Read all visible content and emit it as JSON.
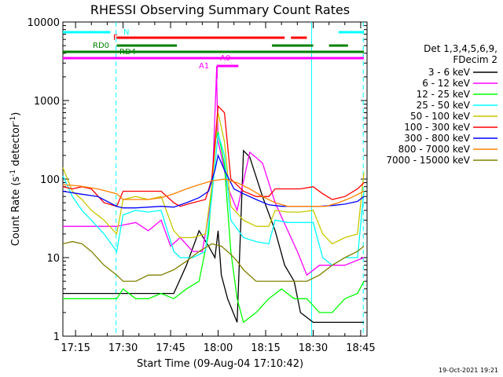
{
  "chart_data": {
    "type": "line",
    "title": "RHESSI Observing Summary Count Rates",
    "xlabel": "Start Time (09-Aug-04 17:10:42)",
    "ylabel": "Count Rate (s",
    "ylabel_sup": "-1",
    "ylabel_mid": " detector",
    "ylabel_sup2": "-1",
    "ylabel_end": ")",
    "y_scale": "log",
    "ylim": [
      1,
      10000
    ],
    "xlim_minutes": [
      17.2,
      18.82
    ],
    "x_ticks": [
      {
        "label": "17:15",
        "minute": 1035
      },
      {
        "label": "17:30",
        "minute": 1050
      },
      {
        "label": "17:45",
        "minute": 1065
      },
      {
        "label": "18:00",
        "minute": 1080
      },
      {
        "label": "18:15",
        "minute": 1095
      },
      {
        "label": "18:30",
        "minute": 1110
      },
      {
        "label": "18:45",
        "minute": 1125
      }
    ],
    "y_ticks": [
      {
        "label": "1",
        "value": 1
      },
      {
        "label": "10",
        "value": 10
      },
      {
        "label": "100",
        "value": 100
      },
      {
        "label": "1000",
        "value": 1000
      },
      {
        "label": "10000",
        "value": 10000
      }
    ],
    "legend_header": [
      "Det 1,3,4,5,6,9,",
      "FDecim 2"
    ],
    "legend_placement": "right",
    "footer_date": "19-Oct-2021 19:21",
    "series": [
      {
        "name": "3 - 6 keV",
        "color": "#000000",
        "x": [
          1031,
          1040,
          1046,
          1050,
          1056,
          1062,
          1066,
          1070,
          1074,
          1077,
          1079,
          1080,
          1081,
          1083,
          1086,
          1088,
          1090,
          1094,
          1098,
          1101,
          1104,
          1106,
          1110,
          1116,
          1121,
          1126
        ],
        "y": [
          3.5,
          3.5,
          3.5,
          3.5,
          3.5,
          3.5,
          3.5,
          8,
          22,
          14,
          10,
          22,
          6,
          3,
          1.5,
          230,
          190,
          60,
          22,
          8,
          5,
          2,
          1.5,
          1.5,
          1.5,
          1.5
        ]
      },
      {
        "name": "6 - 12 keV",
        "color": "#ff00ff",
        "x": [
          1031,
          1036,
          1042,
          1048,
          1050,
          1054,
          1058,
          1062,
          1065,
          1068,
          1072,
          1075,
          1078,
          1079.5,
          1080,
          1081,
          1083,
          1086,
          1090,
          1094,
          1098,
          1102,
          1105,
          1108,
          1112,
          1120,
          1126
        ],
        "y": [
          25,
          25,
          25,
          25,
          26,
          28,
          22,
          30,
          14,
          18,
          12,
          12,
          60,
          2300,
          300,
          200,
          80,
          40,
          220,
          160,
          50,
          22,
          12,
          6,
          8,
          8,
          10
        ]
      },
      {
        "name": "12 - 25 keV",
        "color": "#00ff00",
        "x": [
          1031,
          1036,
          1042,
          1048,
          1050,
          1054,
          1058,
          1062,
          1066,
          1070,
          1074,
          1077,
          1079,
          1080,
          1082,
          1084,
          1086,
          1088,
          1092,
          1096,
          1100,
          1104,
          1108,
          1112,
          1116,
          1120,
          1124,
          1126
        ],
        "y": [
          3,
          3,
          3,
          3,
          4,
          3,
          3,
          3.5,
          3,
          4,
          5,
          20,
          300,
          400,
          150,
          12,
          3,
          1.5,
          2,
          3,
          4,
          3,
          3,
          2,
          2,
          3,
          3.5,
          5
        ]
      },
      {
        "name": "25 - 50 keV",
        "color": "#00ffff",
        "x": [
          1031,
          1034,
          1037,
          1040,
          1044,
          1048,
          1050,
          1054,
          1058,
          1062,
          1066,
          1068,
          1072,
          1076,
          1078,
          1080,
          1082,
          1084,
          1088,
          1092,
          1096,
          1098,
          1102,
          1106,
          1110,
          1113,
          1116,
          1120,
          1124,
          1126
        ],
        "y": [
          110,
          60,
          40,
          30,
          20,
          12,
          35,
          40,
          38,
          40,
          12,
          10,
          10,
          12,
          60,
          380,
          200,
          30,
          18,
          16,
          15,
          30,
          28,
          28,
          28,
          10,
          8,
          10,
          10,
          70
        ]
      },
      {
        "name": "50 - 100 keV",
        "color": "#c8c800",
        "x": [
          1031,
          1034,
          1037,
          1040,
          1044,
          1048,
          1050,
          1054,
          1058,
          1062,
          1066,
          1068,
          1072,
          1076,
          1078,
          1080,
          1082,
          1084,
          1088,
          1092,
          1096,
          1098,
          1102,
          1106,
          1110,
          1113,
          1116,
          1120,
          1124,
          1126
        ],
        "y": [
          140,
          70,
          55,
          40,
          30,
          20,
          55,
          60,
          55,
          60,
          22,
          18,
          18,
          20,
          80,
          700,
          300,
          45,
          30,
          25,
          25,
          40,
          38,
          38,
          40,
          20,
          15,
          18,
          20,
          120
        ]
      },
      {
        "name": "100 - 300 keV",
        "color": "#ff0000",
        "x": [
          1031,
          1034,
          1037,
          1040,
          1044,
          1048,
          1050,
          1054,
          1058,
          1062,
          1066,
          1068,
          1072,
          1076,
          1078,
          1080,
          1082,
          1084,
          1088,
          1092,
          1096,
          1098,
          1102,
          1106,
          1110,
          1113,
          1116,
          1120,
          1124,
          1126
        ],
        "y": [
          80,
          75,
          80,
          75,
          50,
          45,
          70,
          70,
          70,
          70,
          50,
          45,
          50,
          55,
          100,
          850,
          700,
          100,
          70,
          60,
          60,
          75,
          75,
          75,
          80,
          65,
          55,
          60,
          75,
          90
        ]
      },
      {
        "name": "300 - 800 keV",
        "color": "#0000ff",
        "x": [
          1031,
          1036,
          1042,
          1048,
          1050,
          1054,
          1058,
          1062,
          1066,
          1070,
          1074,
          1077,
          1079,
          1080,
          1082,
          1085,
          1088,
          1092,
          1096,
          1100,
          1104,
          1108,
          1112,
          1116,
          1120,
          1124,
          1126
        ],
        "y": [
          70,
          65,
          60,
          45,
          43,
          43,
          44,
          45,
          44,
          50,
          58,
          70,
          130,
          200,
          130,
          75,
          65,
          55,
          47,
          45,
          45,
          45,
          45,
          46,
          48,
          52,
          60
        ]
      },
      {
        "name": "800 - 7000 keV",
        "color": "#ff8000",
        "x": [
          1031,
          1036,
          1042,
          1048,
          1050,
          1054,
          1058,
          1062,
          1066,
          1070,
          1074,
          1078,
          1082,
          1086,
          1090,
          1094,
          1098,
          1102,
          1106,
          1110,
          1114,
          1118,
          1122,
          1126
        ],
        "y": [
          85,
          82,
          75,
          65,
          55,
          55,
          55,
          58,
          65,
          75,
          85,
          95,
          100,
          90,
          75,
          60,
          50,
          45,
          45,
          45,
          45,
          50,
          58,
          70
        ]
      },
      {
        "name": "7000 - 15000 keV",
        "color": "#808000",
        "x": [
          1031,
          1034,
          1037,
          1040,
          1044,
          1048,
          1050,
          1054,
          1058,
          1062,
          1066,
          1070,
          1074,
          1078,
          1081,
          1084,
          1086,
          1088,
          1092,
          1096,
          1100,
          1104,
          1108,
          1112,
          1116,
          1120,
          1124,
          1126
        ],
        "y": [
          15,
          16,
          15,
          12,
          8,
          6,
          5,
          5,
          6,
          6,
          7,
          9,
          12,
          15,
          14,
          11,
          9,
          7,
          5,
          5,
          5,
          5,
          5,
          6,
          8,
          10,
          12,
          14
        ]
      }
    ],
    "annotations": {
      "N": {
        "label": "N",
        "color": "#00ffff",
        "segments": [
          [
            1031,
            1046
          ],
          [
            1118,
            1126
          ]
        ]
      },
      "F": {
        "label": "F",
        "color": "#ff0000",
        "segments": [
          [
            1048,
            1101
          ],
          [
            1103,
            1108
          ]
        ]
      },
      "RD0": {
        "label": "RD0",
        "color": "#008000",
        "segments": [
          [
            1048,
            1067
          ],
          [
            1097,
            1110
          ],
          [
            1115,
            1121
          ]
        ]
      },
      "RD4": {
        "label": "RD4",
        "color": "#008000",
        "segments": [
          [
            1031,
            1126
          ]
        ]
      },
      "A0": {
        "label": "A0",
        "color": "#ff00ff",
        "segments": [
          [
            1031,
            1126
          ]
        ]
      },
      "A1": {
        "label": "A1",
        "color": "#ff00ff",
        "segments": [
          [
            1079.6,
            1086.4
          ]
        ]
      },
      "vlines_cyan_dashed_minutes": [
        1047.8,
        1125.8
      ],
      "vlines_cyan_solid_minutes": [
        1109.5
      ]
    }
  }
}
